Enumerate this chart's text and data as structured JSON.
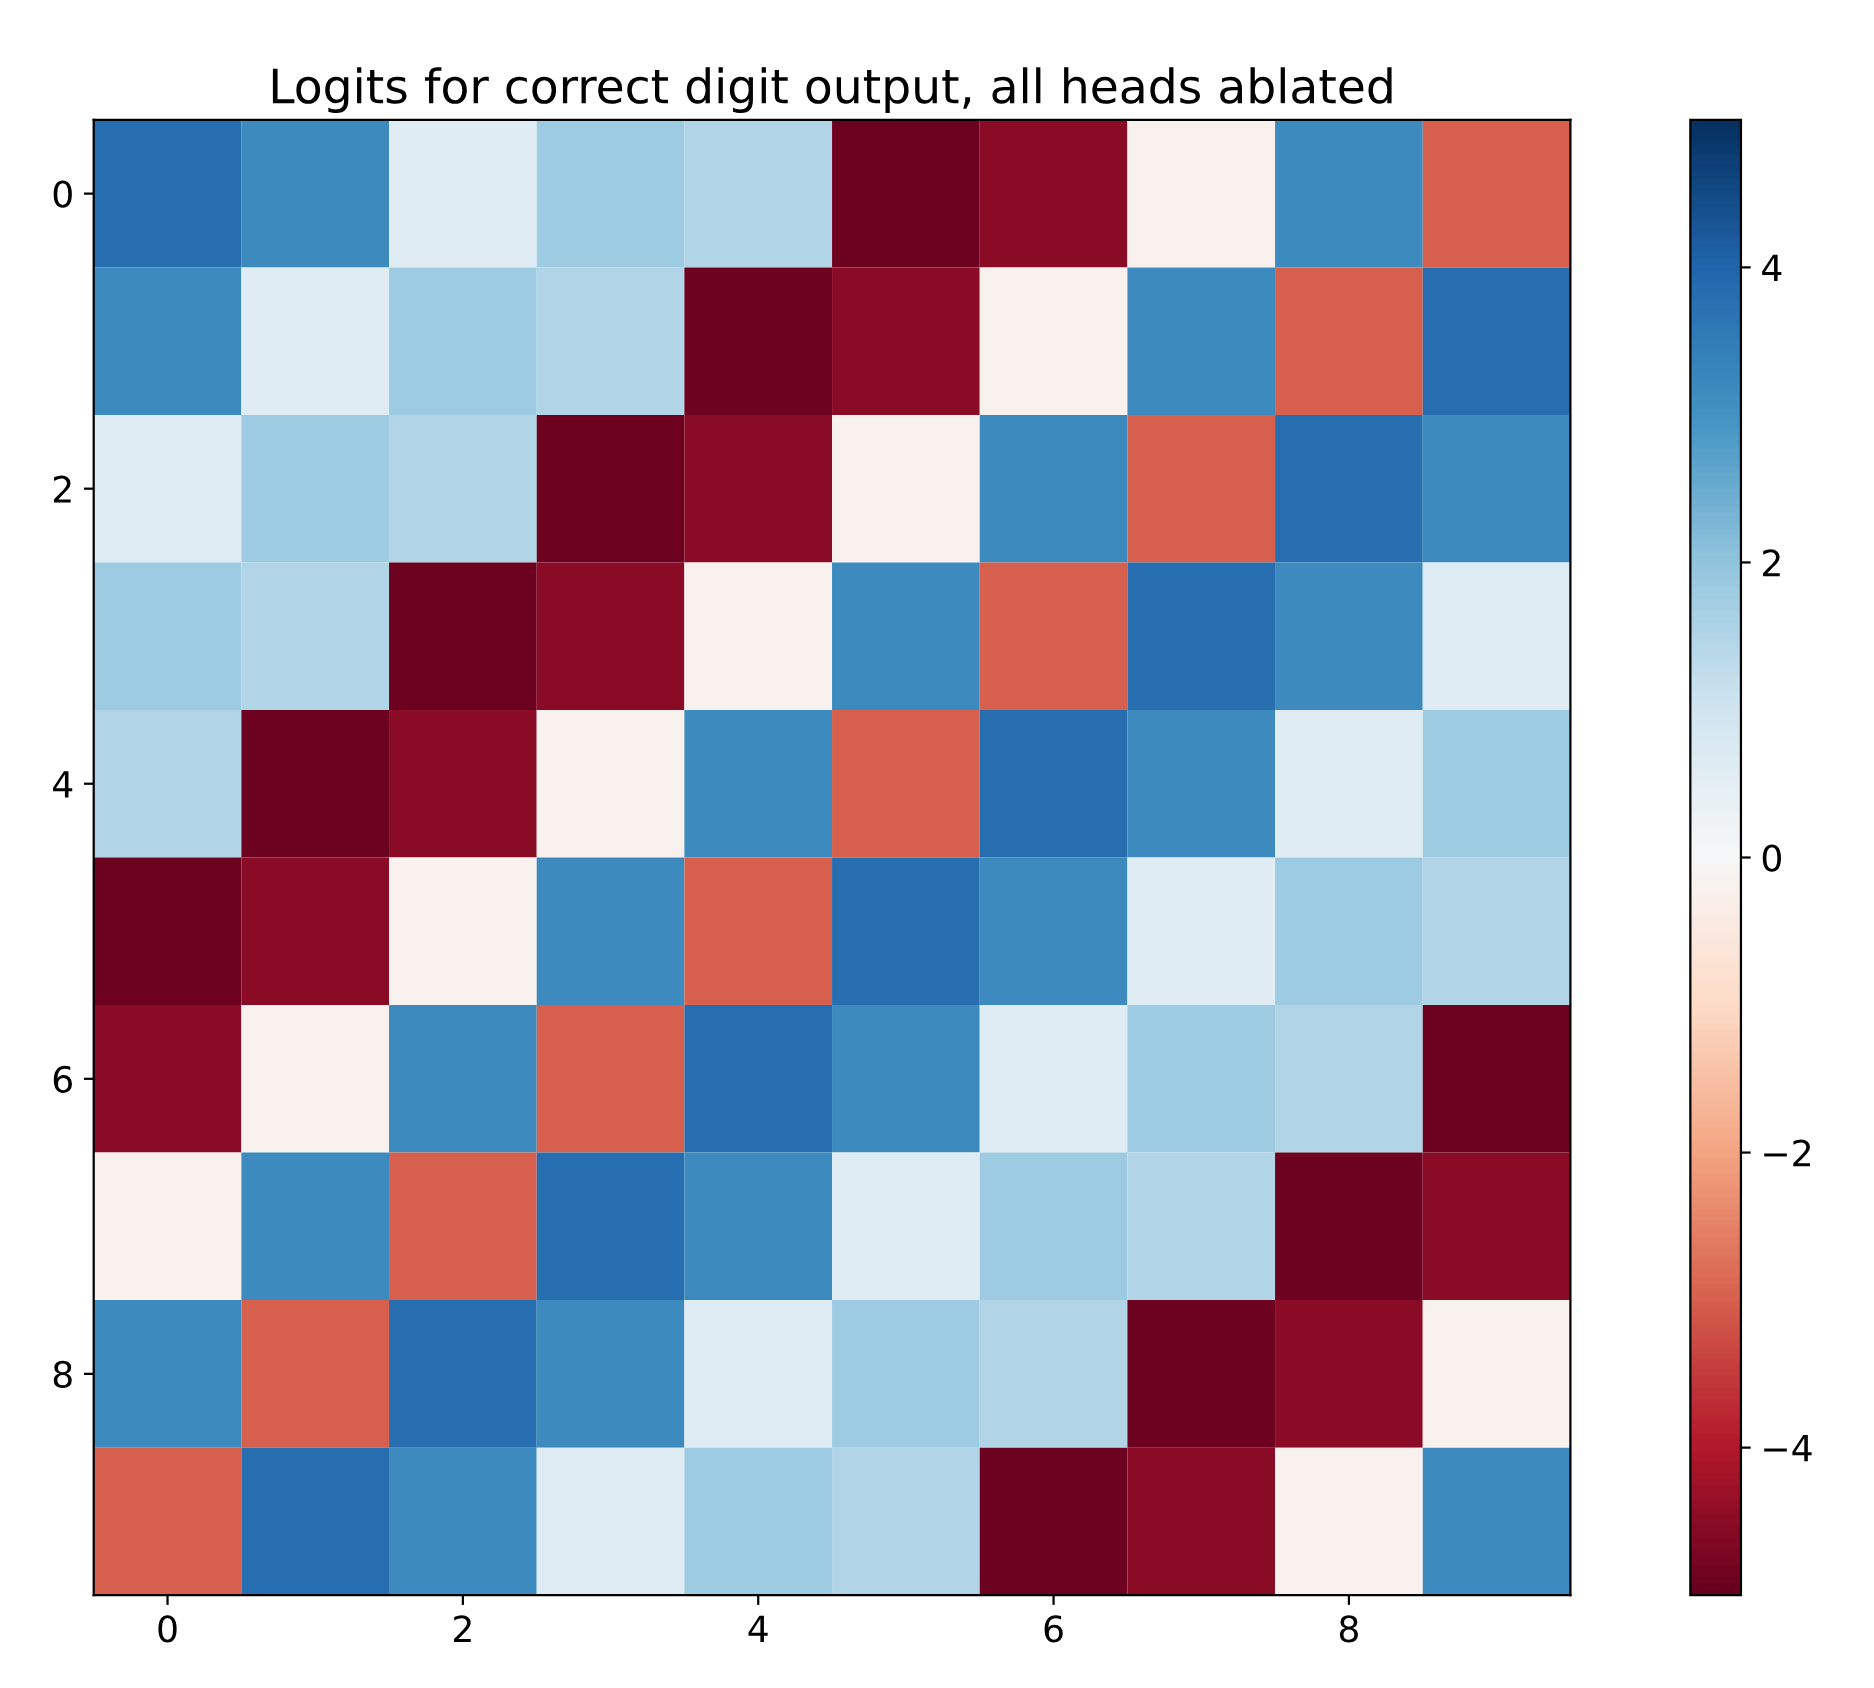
{
  "chart_data": {
    "type": "heatmap",
    "title": "Logits for correct digit output, all heads ablated",
    "categories": [
      "0",
      null,
      "2",
      null,
      "4",
      null,
      "6",
      null,
      "8",
      null
    ],
    "y_categories": [
      "0",
      null,
      "2",
      null,
      "4",
      null,
      "6",
      null,
      "8",
      null
    ],
    "cells": [
      [
        3.8,
        3.2,
        0.6,
        1.8,
        1.5,
        -4.9,
        -4.5,
        -0.2,
        3.2,
        -3.0
      ],
      [
        3.2,
        0.6,
        1.8,
        1.5,
        -4.9,
        -4.5,
        -0.2,
        3.2,
        -3.0,
        3.8
      ],
      [
        0.6,
        1.8,
        1.5,
        -4.9,
        -4.5,
        -0.2,
        3.2,
        -3.0,
        3.8,
        3.2
      ],
      [
        1.8,
        1.5,
        -4.9,
        -4.5,
        -0.2,
        3.2,
        -3.0,
        3.8,
        3.2,
        0.6
      ],
      [
        1.5,
        -4.9,
        -4.5,
        -0.2,
        3.2,
        -3.0,
        3.8,
        3.2,
        0.6,
        1.8
      ],
      [
        -4.9,
        -4.5,
        -0.2,
        3.2,
        -3.0,
        3.8,
        3.2,
        0.6,
        1.8,
        1.5
      ],
      [
        -4.5,
        -0.2,
        3.2,
        -3.0,
        3.8,
        3.2,
        0.6,
        1.8,
        1.5,
        -4.9
      ],
      [
        -0.2,
        3.2,
        -3.0,
        3.8,
        3.2,
        0.6,
        1.8,
        1.5,
        -4.9,
        -4.5
      ],
      [
        3.2,
        -3.0,
        3.8,
        3.2,
        0.6,
        1.8,
        1.5,
        -4.9,
        -4.5,
        -0.2
      ],
      [
        -3.0,
        3.8,
        3.2,
        0.6,
        1.8,
        1.5,
        -4.9,
        -4.5,
        -0.2,
        3.2
      ]
    ],
    "clim": [
      -5,
      5
    ],
    "cticks": [
      {
        "value": -4,
        "label": "−4"
      },
      {
        "value": -2,
        "label": "−2"
      },
      0,
      2,
      4
    ]
  }
}
